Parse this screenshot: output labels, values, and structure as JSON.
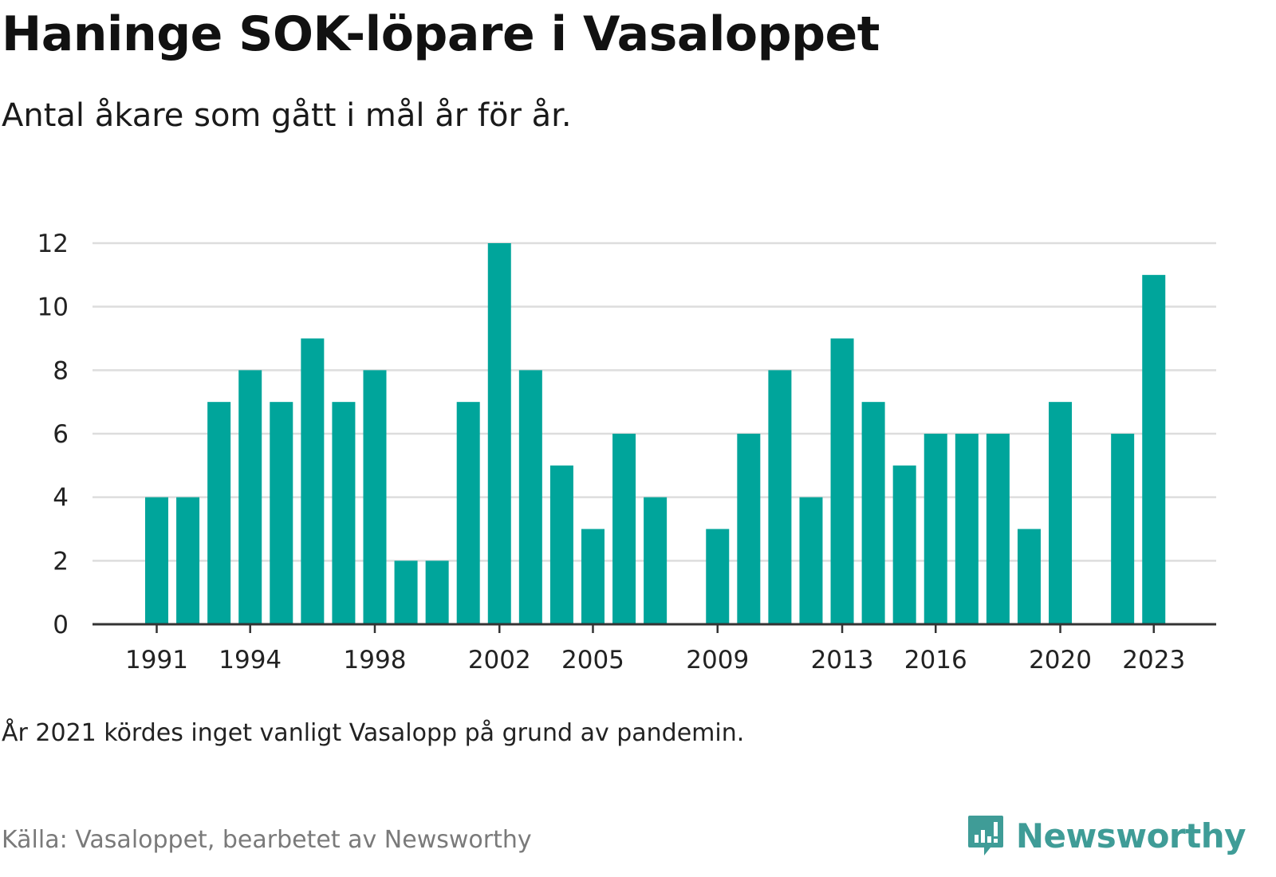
{
  "header": {
    "title": "Haninge SOK-löpare i Vasaloppet",
    "subtitle": "Antal åkare som gått i mål år för år."
  },
  "footer": {
    "note": "År 2021 kördes inget vanligt Vasalopp på grund av pandemin.",
    "source": "Källa: Vasaloppet, bearbetet av Newsworthy",
    "brand": "Newsworthy"
  },
  "colors": {
    "bar": "#00a59b",
    "grid": "#dddddd",
    "axis": "#333333",
    "brand": "#3f9c97"
  },
  "chart_data": {
    "type": "bar",
    "categories": [
      1991,
      1992,
      1993,
      1994,
      1995,
      1996,
      1997,
      1998,
      1999,
      2000,
      2001,
      2002,
      2003,
      2004,
      2005,
      2006,
      2007,
      2008,
      2009,
      2010,
      2011,
      2012,
      2013,
      2014,
      2015,
      2016,
      2017,
      2018,
      2019,
      2020,
      2021,
      2022,
      2023
    ],
    "values": [
      4,
      4,
      7,
      8,
      7,
      9,
      7,
      8,
      2,
      2,
      7,
      12,
      8,
      5,
      3,
      6,
      4,
      null,
      3,
      6,
      8,
      4,
      9,
      7,
      5,
      6,
      6,
      6,
      3,
      7,
      null,
      6,
      11
    ],
    "x_tick_labels": [
      "1991",
      "1994",
      "1998",
      "2002",
      "2005",
      "2009",
      "2013",
      "2016",
      "2020",
      "2023"
    ],
    "y_ticks": [
      0,
      2,
      4,
      6,
      8,
      10,
      12
    ],
    "ylim": [
      0,
      12
    ],
    "grid": true,
    "legend": "none"
  }
}
